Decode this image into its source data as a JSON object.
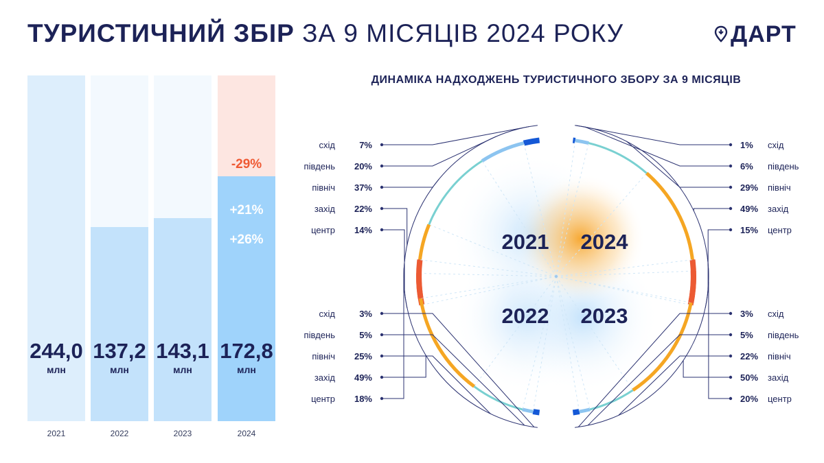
{
  "header": {
    "title_bold": "ТУРИСТИЧНИЙ ЗБІР",
    "title_light": "ЗА 9 МІСЯЦІВ 2024 РОКУ",
    "logo_text": "ДАРТ"
  },
  "colors": {
    "navy": "#1c2257",
    "bar_light": "#ddeefc",
    "bar_fill": "#c3e2fb",
    "bar_fill_2024": "#9fd3fb",
    "decline_bg": "#fde6e1",
    "decline_text": "#ef5a34",
    "east": "#1458d6",
    "south": "#8cc4f0",
    "north": "#79d0d1",
    "west": "#f5a623",
    "center": "#ec5a33"
  },
  "chart_data": [
    {
      "type": "bar",
      "unit": "млн",
      "categories": [
        "2021",
        "2022",
        "2023",
        "2024"
      ],
      "values": [
        244.0,
        137.2,
        143.1,
        172.8
      ],
      "value_labels": [
        "244,0",
        "137,2",
        "143,1",
        "172,8"
      ],
      "ylim": [
        0,
        244.0
      ],
      "annotations": [
        {
          "category": "2024",
          "text": "-29%",
          "meaning": "vs 2021",
          "color": "#ef5a34"
        },
        {
          "category": "2024",
          "text": "+21%",
          "meaning": "vs 2023",
          "color": "#ffffff"
        },
        {
          "category": "2024",
          "text": "+26%",
          "meaning": "vs 2022",
          "color": "#ffffff"
        }
      ]
    },
    {
      "type": "pie",
      "title": "ДИНАМІКА НАДХОДЖЕНЬ ТУРИСТИЧНОГО ЗБОРУ ЗА 9 МІСЯЦІВ",
      "categories": [
        "схід",
        "південь",
        "північ",
        "захід",
        "центр"
      ],
      "series": [
        {
          "name": "2021",
          "position": "top-left",
          "labels": [
            "7%",
            "20%",
            "37%",
            "22%",
            "14%"
          ],
          "values": [
            7,
            20,
            37,
            22,
            14
          ]
        },
        {
          "name": "2024",
          "position": "top-right",
          "labels": [
            "1%",
            "6%",
            "29%",
            "49%",
            "15%"
          ],
          "values": [
            1,
            6,
            29,
            49,
            15
          ]
        },
        {
          "name": "2022",
          "position": "bottom-left",
          "labels": [
            "3%",
            "5%",
            "25%",
            "49%",
            "18%"
          ],
          "values": [
            3,
            5,
            25,
            49,
            18
          ]
        },
        {
          "name": "2023",
          "position": "bottom-right",
          "labels": [
            "3%",
            "5%",
            "22%",
            "50%",
            "20%"
          ],
          "values": [
            3,
            5,
            22,
            50,
            20
          ]
        }
      ]
    }
  ]
}
